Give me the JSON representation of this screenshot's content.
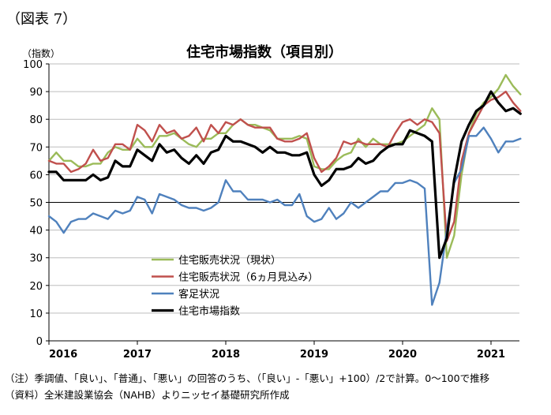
{
  "figure_label": "（図表 7）",
  "notes": {
    "note": "（注）季調値、「良い」、「普通」、「悪い」の回答のうち、（「良い」-「悪い」+100）/2で計算。0～100で推移",
    "source": "（資料）全米建設業協会（NAHB）よりニッセイ基礎研究所作成"
  },
  "colors": {
    "green": "#9bbb59",
    "red": "#c0504d",
    "blue": "#4f81bd",
    "black": "#000000"
  },
  "chart_data": {
    "type": "line",
    "title": "住宅市場指数（項目別）",
    "ylabel": "（指数）",
    "xlabel": "",
    "ylim": [
      0,
      100
    ],
    "yticks": [
      "0",
      "10",
      "20",
      "30",
      "40",
      "50",
      "60",
      "70",
      "80",
      "90",
      "100"
    ],
    "xticks": [
      "2016",
      "2017",
      "2018",
      "2019",
      "2020",
      "2021"
    ],
    "x_start": "2016-01",
    "x_end": "2021-05",
    "reference_line": 50,
    "grid": "horizontal",
    "legend_position": "bottom-left",
    "series": [
      {
        "name": "住宅販売状況（現状）",
        "color": "#9bbb59",
        "values": [
          65,
          68,
          65,
          65,
          63,
          63,
          64,
          64,
          68,
          70,
          69,
          69,
          73,
          70,
          70,
          74,
          74,
          75,
          73,
          71,
          70,
          73,
          73,
          75,
          75,
          78,
          80,
          78,
          78,
          77,
          76,
          73,
          73,
          73,
          74,
          73,
          63,
          62,
          62,
          65,
          67,
          68,
          73,
          70,
          73,
          71,
          71,
          71,
          72,
          74,
          76,
          78,
          84,
          80,
          30,
          38,
          60,
          75,
          82,
          86,
          88,
          91,
          96,
          92,
          89,
          88,
          87,
          88,
          88
        ]
      },
      {
        "name": "住宅販売状況（6ヵ月見込み）",
        "color": "#c0504d",
        "values": [
          65,
          64,
          64,
          61,
          62,
          64,
          69,
          65,
          66,
          71,
          71,
          69,
          78,
          76,
          72,
          78,
          75,
          76,
          73,
          74,
          77,
          72,
          78,
          75,
          79,
          78,
          80,
          78,
          77,
          77,
          77,
          73,
          72,
          72,
          73,
          75,
          66,
          61,
          63,
          66,
          72,
          71,
          72,
          71,
          71,
          71,
          70,
          75,
          79,
          80,
          78,
          80,
          79,
          75,
          36,
          43,
          65,
          75,
          80,
          85,
          87,
          88,
          90,
          86,
          83,
          80,
          82,
          80,
          81
        ]
      },
      {
        "name": "客足状況",
        "color": "#4f81bd",
        "values": [
          45,
          43,
          39,
          43,
          44,
          44,
          46,
          45,
          44,
          47,
          46,
          47,
          52,
          51,
          46,
          53,
          52,
          51,
          49,
          48,
          48,
          47,
          48,
          50,
          58,
          54,
          54,
          51,
          51,
          51,
          50,
          51,
          49,
          49,
          53,
          45,
          43,
          44,
          48,
          44,
          46,
          50,
          48,
          50,
          52,
          54,
          54,
          57,
          57,
          58,
          57,
          55,
          13,
          21,
          40,
          57,
          62,
          74,
          74,
          77,
          73,
          68,
          72,
          72,
          73,
          72,
          73,
          72,
          74
        ]
      },
      {
        "name": "住宅市場指数",
        "color": "#000000",
        "values": [
          61,
          61,
          58,
          58,
          58,
          58,
          60,
          58,
          59,
          65,
          63,
          63,
          69,
          67,
          65,
          71,
          68,
          69,
          66,
          64,
          67,
          64,
          68,
          69,
          74,
          72,
          72,
          71,
          70,
          68,
          70,
          68,
          68,
          67,
          67,
          68,
          60,
          56,
          58,
          62,
          62,
          63,
          66,
          64,
          65,
          68,
          70,
          71,
          71,
          76,
          75,
          74,
          72,
          30,
          37,
          58,
          72,
          78,
          83,
          85,
          90,
          86,
          83,
          84,
          82,
          83,
          83,
          83,
          83
        ]
      }
    ]
  }
}
